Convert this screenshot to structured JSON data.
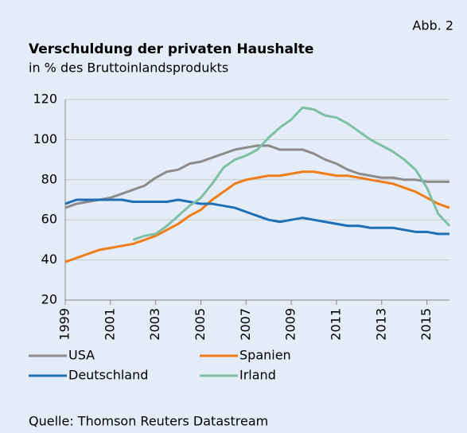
{
  "figure_label": "Abb. 2",
  "source": "Quelle: Thomson Reuters Datastream",
  "chart_data": {
    "type": "line",
    "title": "Verschuldung der privaten Haushalte",
    "subtitle": "in % des Bruttoinlandsprodukts",
    "x": [
      1999,
      1999.5,
      2000,
      2000.5,
      2001,
      2001.5,
      2002,
      2002.5,
      2003,
      2003.5,
      2004,
      2004.5,
      2005,
      2005.5,
      2006,
      2006.5,
      2007,
      2007.5,
      2008,
      2008.5,
      2009,
      2009.5,
      2010,
      2010.5,
      2011,
      2011.5,
      2012,
      2012.5,
      2013,
      2013.5,
      2014,
      2014.5,
      2015,
      2015.5,
      2016
    ],
    "series": [
      {
        "name": "USA",
        "color": "#8c8c8c",
        "values": [
          66,
          68,
          69,
          70,
          71,
          73,
          75,
          77,
          81,
          84,
          85,
          88,
          89,
          91,
          93,
          95,
          96,
          97,
          97,
          95,
          95,
          95,
          93,
          90,
          88,
          85,
          83,
          82,
          81,
          81,
          80,
          80,
          79,
          79,
          79
        ]
      },
      {
        "name": "Spanien",
        "color": "#f07d1a",
        "values": [
          39,
          41,
          43,
          45,
          46,
          47,
          48,
          50,
          52,
          55,
          58,
          62,
          65,
          70,
          74,
          78,
          80,
          81,
          82,
          82,
          83,
          84,
          84,
          83,
          82,
          82,
          81,
          80,
          79,
          78,
          76,
          74,
          71,
          68,
          66
        ]
      },
      {
        "name": "Deutschland",
        "color": "#1f6fb5",
        "values": [
          68,
          70,
          70,
          70,
          70,
          70,
          69,
          69,
          69,
          69,
          70,
          69,
          68,
          68,
          67,
          66,
          64,
          62,
          60,
          59,
          60,
          61,
          60,
          59,
          58,
          57,
          57,
          56,
          56,
          56,
          55,
          54,
          54,
          53,
          53
        ]
      },
      {
        "name": "Irland",
        "color": "#7fbfa8",
        "values": [
          null,
          null,
          null,
          null,
          null,
          null,
          50,
          52,
          53,
          57,
          62,
          67,
          71,
          78,
          86,
          90,
          92,
          95,
          101,
          106,
          110,
          116,
          115,
          112,
          111,
          108,
          104,
          100,
          97,
          94,
          90,
          85,
          76,
          63,
          57
        ]
      }
    ],
    "xlim": [
      1999,
      2016
    ],
    "xticks": [
      1999,
      2001,
      2003,
      2005,
      2007,
      2009,
      2011,
      2013,
      2015
    ],
    "ylim": [
      20,
      120
    ],
    "yticks": [
      20,
      40,
      60,
      80,
      100,
      120
    ],
    "grid": true
  }
}
